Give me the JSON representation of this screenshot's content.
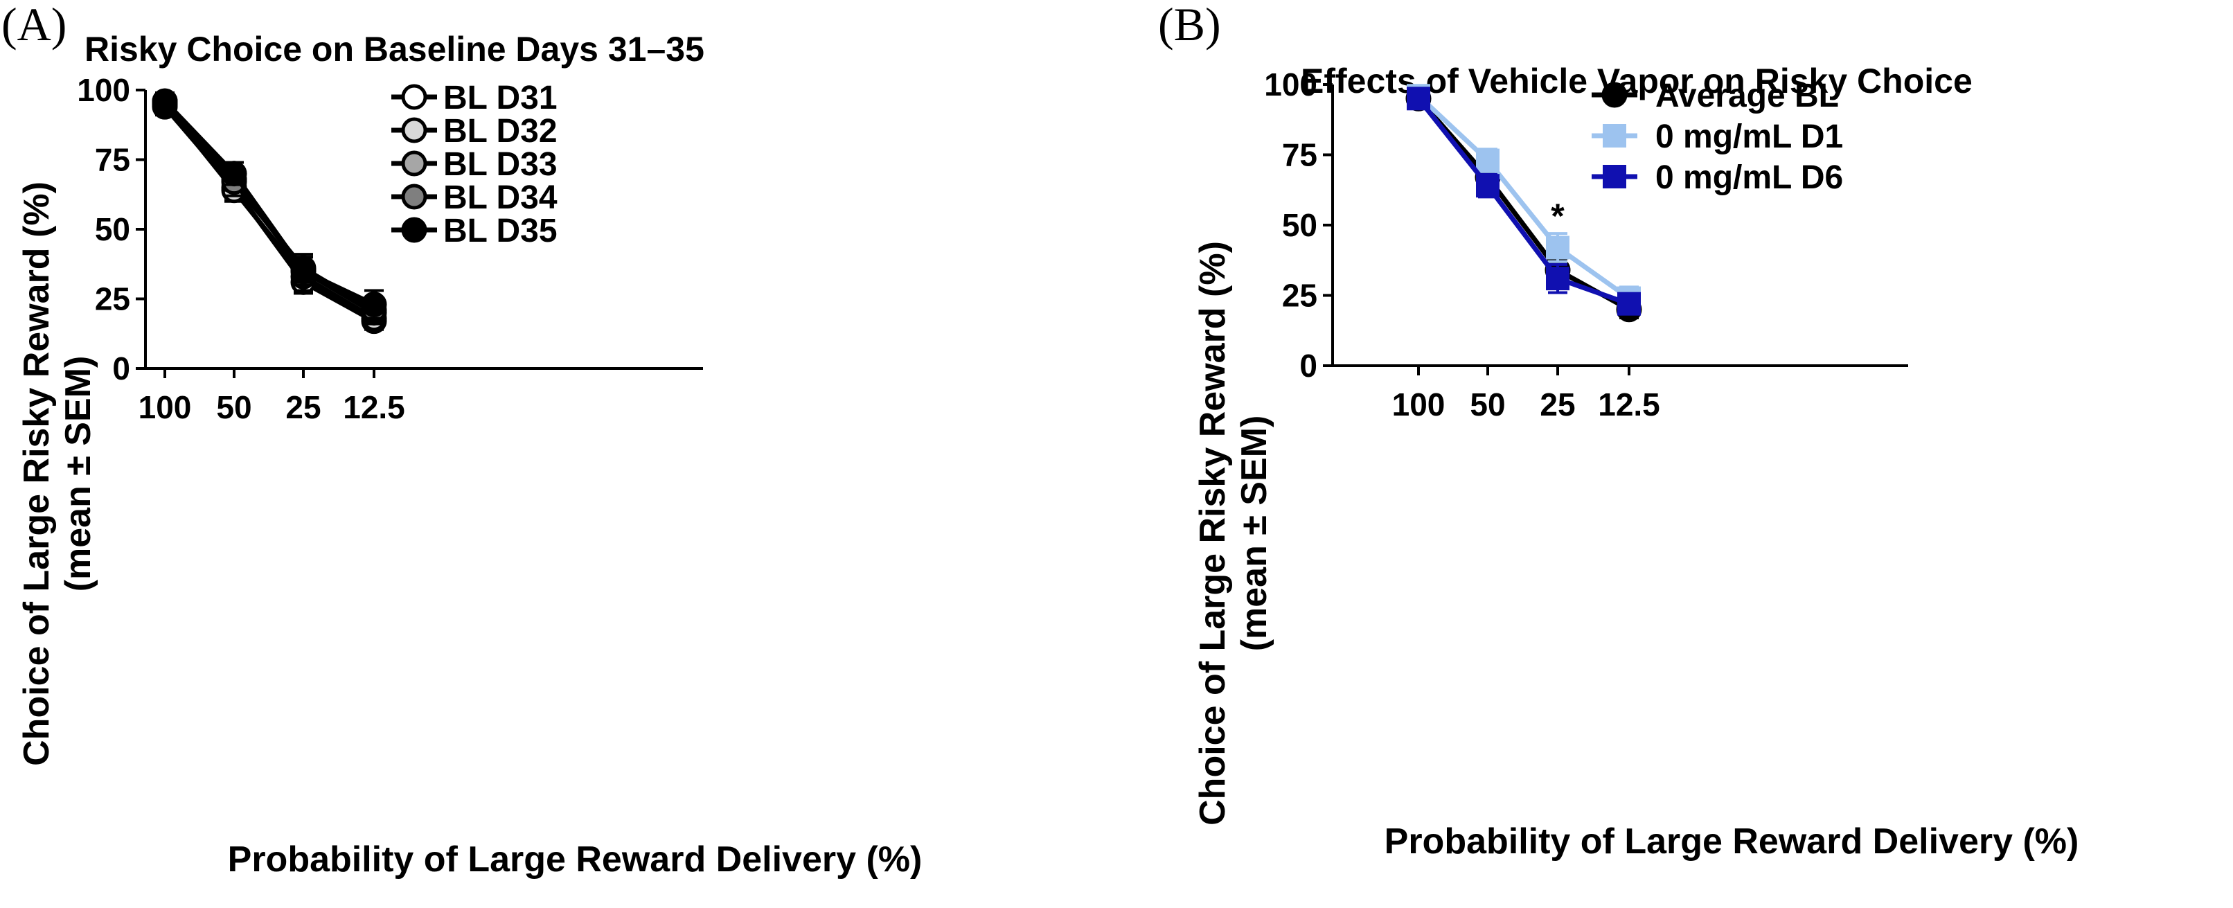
{
  "chart_data": [
    {
      "panel": "(A)",
      "type": "line",
      "title": "Risky Choice on Baseline Days 31–35",
      "xlabel": "Probability of Large Reward Delivery (%)",
      "ylabel_line1": "Choice of Large Risky Reward (%)",
      "ylabel_line2": "(mean ± SEM)",
      "categories": [
        "100",
        "50",
        "25",
        "12.5"
      ],
      "yticks": [
        "0",
        "25",
        "50",
        "75",
        "100"
      ],
      "ylim": [
        0,
        100
      ],
      "legend_position": "top-right",
      "series": [
        {
          "name": "BL D31",
          "marker": "circle",
          "fill": "#ffffff",
          "line": "#000000",
          "values": [
            94,
            65,
            31,
            17
          ],
          "sem": [
            3,
            4,
            4,
            3
          ]
        },
        {
          "name": "BL D32",
          "marker": "circle",
          "fill": "#d9d9d9",
          "line": "#000000",
          "values": [
            95,
            64,
            33,
            18
          ],
          "sem": [
            3,
            4,
            5,
            3
          ]
        },
        {
          "name": "BL D33",
          "marker": "circle",
          "fill": "#a6a6a6",
          "line": "#000000",
          "values": [
            95,
            68,
            35,
            20
          ],
          "sem": [
            3,
            4,
            5,
            4
          ]
        },
        {
          "name": "BL D34",
          "marker": "circle",
          "fill": "#7f7f7f",
          "line": "#000000",
          "values": [
            96,
            67,
            36,
            21
          ],
          "sem": [
            3,
            5,
            5,
            4
          ]
        },
        {
          "name": "BL D35",
          "marker": "circle",
          "fill": "#000000",
          "line": "#000000",
          "values": [
            96,
            70,
            35,
            23
          ],
          "sem": [
            3,
            4,
            5,
            5
          ]
        }
      ]
    },
    {
      "panel": "(B)",
      "type": "line",
      "title": "Effects of Vehicle Vapor on Risky Choice",
      "xlabel": "Probability of Large Reward Delivery (%)",
      "ylabel_line1": "Choice of Large Risky Reward (%)",
      "ylabel_line2": "(mean ± SEM)",
      "categories": [
        "100",
        "50",
        "25",
        "12.5"
      ],
      "yticks": [
        "0",
        "25",
        "50",
        "75",
        "100"
      ],
      "ylim": [
        0,
        100
      ],
      "legend_position": "top-right",
      "annotations": [
        {
          "text": "*",
          "category": "25",
          "y": 54
        }
      ],
      "series": [
        {
          "name": "Average BL",
          "marker": "circle",
          "fill": "#000000",
          "line": "#000000",
          "values": [
            95,
            67,
            34,
            20
          ],
          "sem": [
            2,
            4,
            4,
            3
          ]
        },
        {
          "name": "0 mg/mL D1",
          "marker": "square",
          "fill": "#9dc3ef",
          "line": "#9dc3ef",
          "values": [
            96,
            73,
            42,
            24
          ],
          "sem": [
            2,
            4,
            5,
            4
          ]
        },
        {
          "name": "0 mg/mL D6",
          "marker": "square",
          "fill": "#1010b0",
          "line": "#1010b0",
          "values": [
            95,
            64,
            31,
            22
          ],
          "sem": [
            2,
            4,
            5,
            3
          ]
        }
      ]
    }
  ]
}
